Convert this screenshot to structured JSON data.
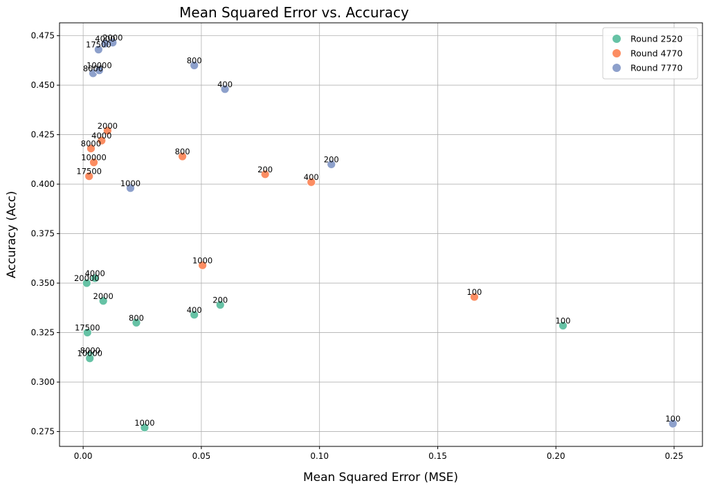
{
  "chart_data": {
    "type": "scatter",
    "title": "Mean Squared Error vs. Accuracy",
    "xlabel": "Mean Squared Error (MSE)",
    "ylabel": "Accuracy (Acc)",
    "xlim": [
      -0.01,
      0.262
    ],
    "ylim": [
      0.2675,
      0.4815
    ],
    "xticks": [
      "0.00",
      "0.05",
      "0.10",
      "0.15",
      "0.20",
      "0.25"
    ],
    "yticks": [
      "0.275",
      "0.300",
      "0.325",
      "0.350",
      "0.375",
      "0.400",
      "0.425",
      "0.450",
      "0.475"
    ],
    "grid": true,
    "legend_position": "top-right",
    "series": [
      {
        "name": "Round 2520",
        "color": "#66c2a5",
        "points": [
          {
            "label": "100",
            "x": 0.203,
            "y": 0.3285
          },
          {
            "label": "200",
            "x": 0.058,
            "y": 0.339
          },
          {
            "label": "400",
            "x": 0.047,
            "y": 0.334
          },
          {
            "label": "800",
            "x": 0.0225,
            "y": 0.33
          },
          {
            "label": "1000",
            "x": 0.026,
            "y": 0.277
          },
          {
            "label": "2000",
            "x": 0.0085,
            "y": 0.341
          },
          {
            "label": "4000",
            "x": 0.005,
            "y": 0.3525
          },
          {
            "label": "8000",
            "x": 0.003,
            "y": 0.3135
          },
          {
            "label": "10000",
            "x": 0.0028,
            "y": 0.312
          },
          {
            "label": "17500",
            "x": 0.0018,
            "y": 0.325
          },
          {
            "label": "20000",
            "x": 0.0015,
            "y": 0.35
          }
        ]
      },
      {
        "name": "Round 4770",
        "color": "#fc8d62",
        "points": [
          {
            "label": "100",
            "x": 0.1655,
            "y": 0.343
          },
          {
            "label": "200",
            "x": 0.077,
            "y": 0.405
          },
          {
            "label": "400",
            "x": 0.0965,
            "y": 0.401
          },
          {
            "label": "800",
            "x": 0.042,
            "y": 0.414
          },
          {
            "label": "1000",
            "x": 0.0505,
            "y": 0.359
          },
          {
            "label": "2000",
            "x": 0.0103,
            "y": 0.427
          },
          {
            "label": "4000",
            "x": 0.0078,
            "y": 0.422
          },
          {
            "label": "8000",
            "x": 0.0033,
            "y": 0.418
          },
          {
            "label": "10000",
            "x": 0.0045,
            "y": 0.411
          },
          {
            "label": "17500",
            "x": 0.0025,
            "y": 0.404
          }
        ]
      },
      {
        "name": "Round 7770",
        "color": "#8da0cb",
        "points": [
          {
            "label": "100",
            "x": 0.2495,
            "y": 0.279
          },
          {
            "label": "200",
            "x": 0.105,
            "y": 0.41
          },
          {
            "label": "400",
            "x": 0.06,
            "y": 0.448
          },
          {
            "label": "800",
            "x": 0.047,
            "y": 0.46
          },
          {
            "label": "1000",
            "x": 0.02,
            "y": 0.398
          },
          {
            "label": "2000",
            "x": 0.0125,
            "y": 0.4715
          },
          {
            "label": "4000",
            "x": 0.0093,
            "y": 0.471
          },
          {
            "label": "8000",
            "x": 0.0042,
            "y": 0.456
          },
          {
            "label": "10000",
            "x": 0.0068,
            "y": 0.4575
          },
          {
            "label": "17500",
            "x": 0.0065,
            "y": 0.468
          }
        ]
      }
    ]
  }
}
